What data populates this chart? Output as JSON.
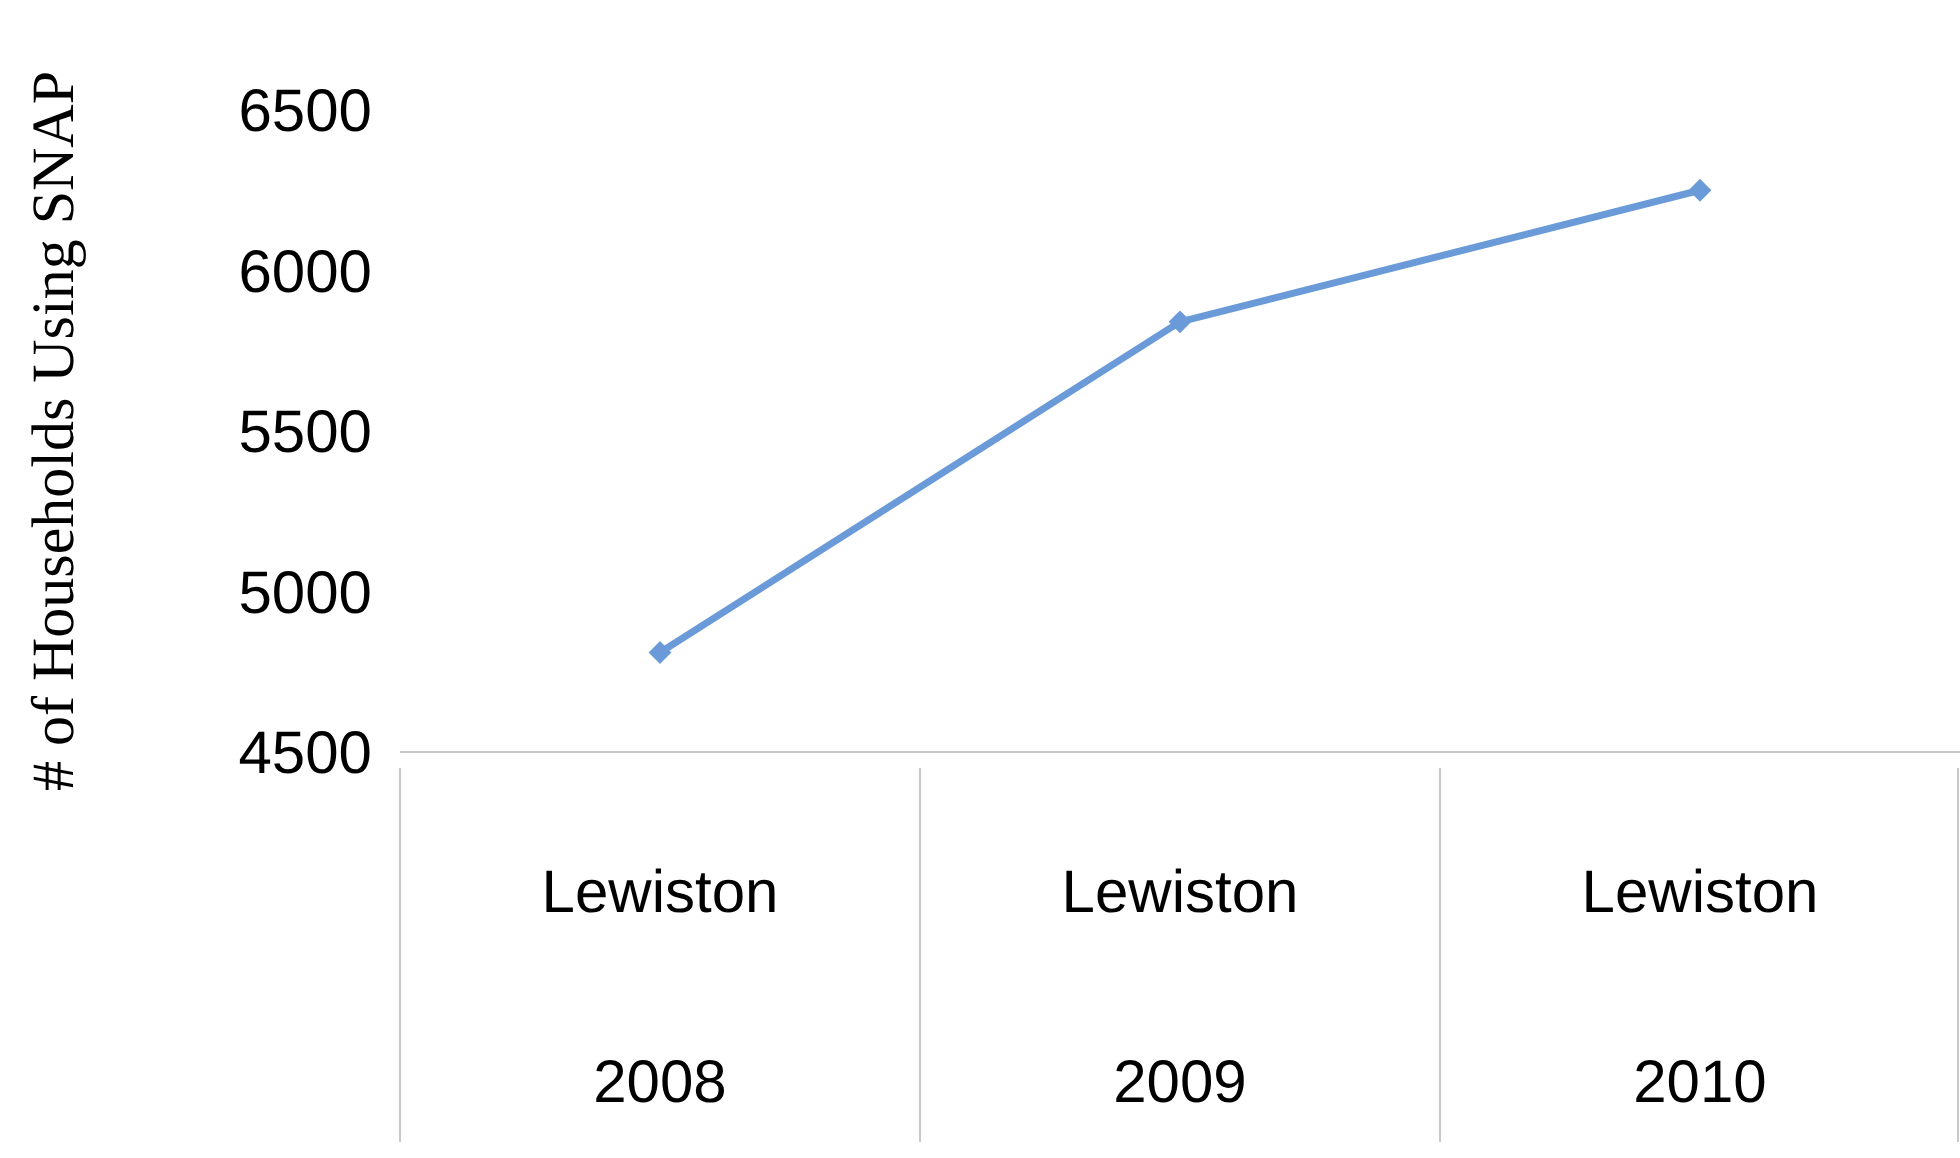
{
  "chart_data": {
    "type": "line",
    "ylabel": "# of Households Using SNAP",
    "categories": [
      "Lewiston\n2008",
      "Lewiston\n2009",
      "Lewiston\n2010"
    ],
    "series": [
      {
        "color": "#6a9bd8",
        "values": [
          4810,
          5840,
          6250
        ]
      }
    ],
    "ylim": [
      4500,
      6500
    ],
    "yticks": [
      4500,
      5000,
      5500,
      6000,
      6500
    ],
    "grid": false,
    "legend": false,
    "marker": "diamond",
    "line_style": "solid"
  }
}
